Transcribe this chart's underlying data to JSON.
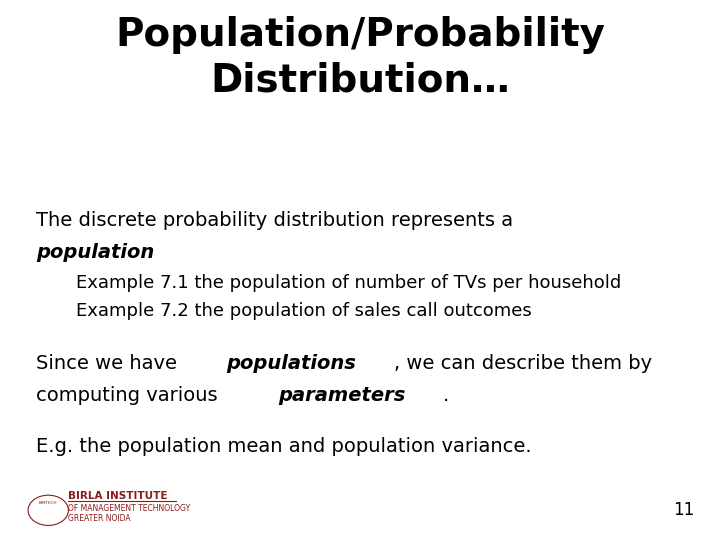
{
  "title": "Population/Probability\nDistribution…",
  "title_fontsize": 28,
  "title_color": "#000000",
  "background_color": "#ffffff",
  "body_fontsize": 14,
  "indent_fontsize": 13,
  "page_number": "11",
  "indent1": "Example 7.1 the population of number of TVs per household",
  "indent2": "Example 7.2 the population of sales call outcomes",
  "para3": "E.g. the population mean and population variance."
}
